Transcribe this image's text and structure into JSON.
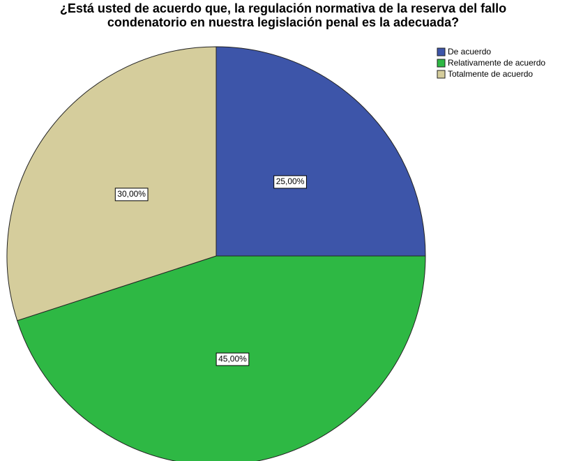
{
  "chart_data": {
    "type": "pie",
    "title": [
      "¿Está usted de acuerdo que, la regulación normativa de la reserva del fallo",
      "condenatorio en nuestra legislación penal es la adecuada?"
    ],
    "categories": [
      "De acuerdo",
      "Relativamente de acuerdo",
      "Totalmente de acuerdo"
    ],
    "values": [
      25,
      45,
      30
    ],
    "value_labels": [
      "25,00%",
      "45,00%",
      "30,00%"
    ],
    "colors": [
      "#3d55a9",
      "#2eb844",
      "#d5cd9c"
    ],
    "legend": "top-right"
  }
}
